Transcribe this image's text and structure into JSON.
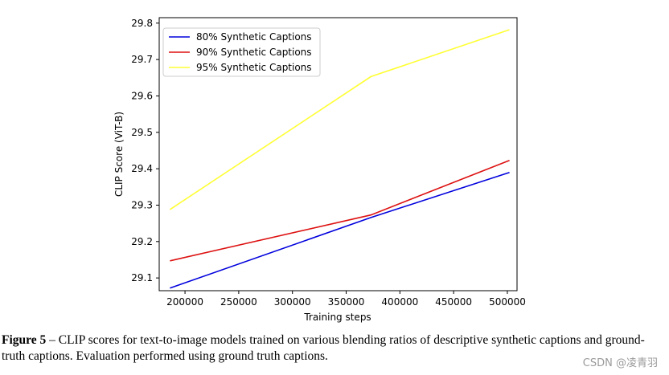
{
  "chart_data": {
    "type": "line",
    "xlabel": "Training steps",
    "ylabel": "CLIP Score (ViT-B)",
    "xlim": [
      176000,
      509000
    ],
    "ylim": [
      29.065,
      29.815
    ],
    "xticks": [
      200000,
      250000,
      300000,
      350000,
      400000,
      450000,
      500000
    ],
    "yticks": [
      29.1,
      29.2,
      29.3,
      29.4,
      29.5,
      29.6,
      29.7,
      29.8
    ],
    "xtick_labels": [
      "200000",
      "250000",
      "300000",
      "350000",
      "400000",
      "450000",
      "500000"
    ],
    "ytick_labels": [
      "29.1",
      "29.2",
      "29.3",
      "29.4",
      "29.5",
      "29.6",
      "29.7",
      "29.8"
    ],
    "grid": false,
    "legend_position": "top-left",
    "series": [
      {
        "name": "80% Synthetic Captions",
        "color": "#0000dd",
        "x": [
          186000,
          373000,
          502000
        ],
        "y": [
          29.072,
          29.266,
          29.39
        ]
      },
      {
        "name": "90% Synthetic Captions",
        "color": "#dd1111",
        "x": [
          186000,
          373000,
          502000
        ],
        "y": [
          29.147,
          29.273,
          29.423
        ]
      },
      {
        "name": "95% Synthetic Captions",
        "color": "#ffff33",
        "x": [
          186000,
          373000,
          502000
        ],
        "y": [
          29.288,
          29.653,
          29.782
        ]
      }
    ]
  },
  "caption": {
    "label": "Figure 5",
    "text": " – CLIP scores for text-to-image models trained on various blending ratios of descriptive synthetic captions and ground-truth captions. Evaluation performed using ground truth captions."
  },
  "watermark": "CSDN @凌青羽"
}
